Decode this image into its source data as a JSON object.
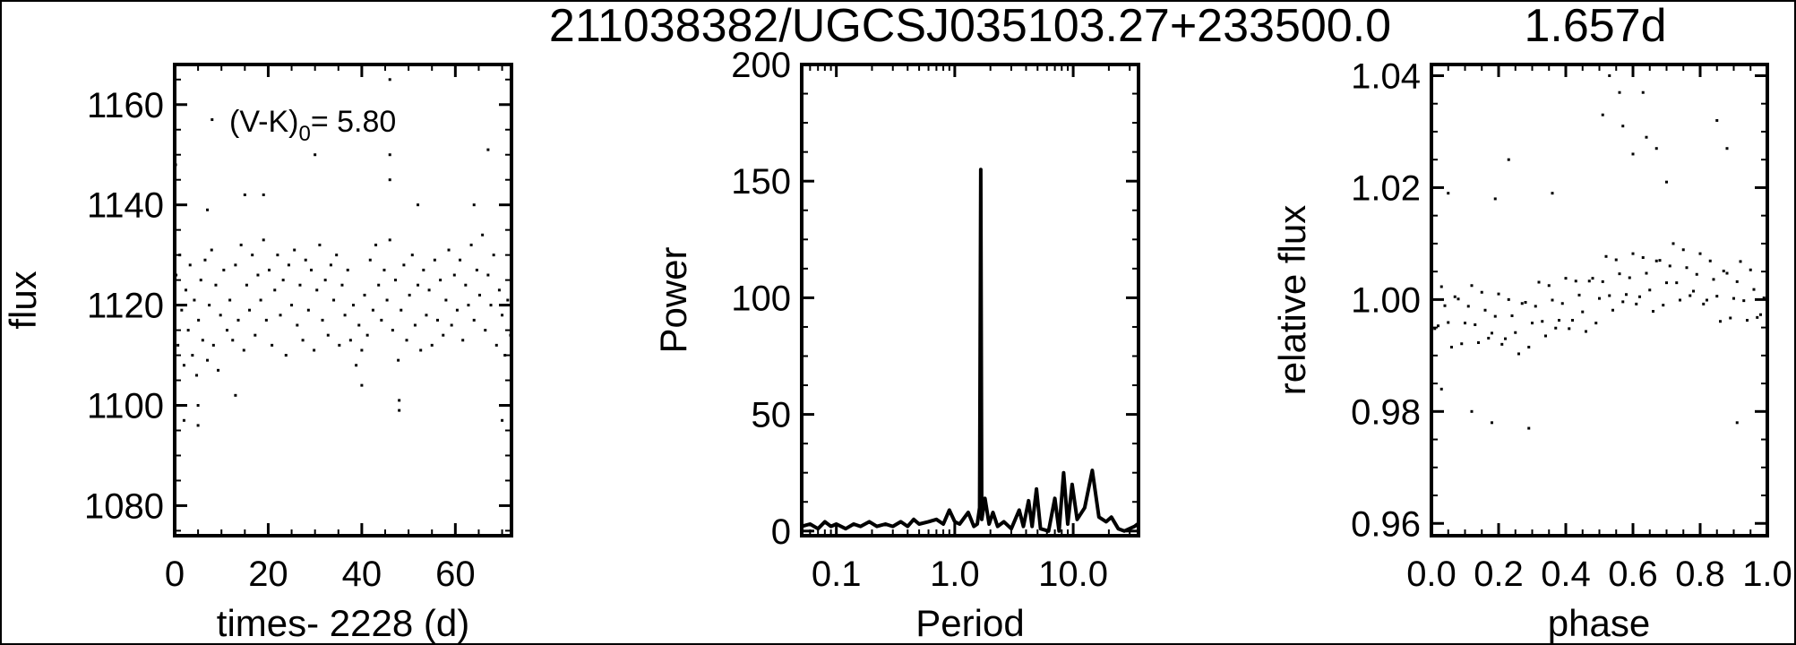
{
  "title": {
    "object": "211038382/UGCSJ035103.27+233500.0",
    "period": "1.657d"
  },
  "colors": {
    "ink": "#000000",
    "background": "#ffffff"
  },
  "chart_data": [
    {
      "type": "scatter",
      "xlabel": "times- 2228 (d)",
      "ylabel": "flux",
      "annotation": {
        "text": "(V-K)",
        "sub": "0",
        "value": "= 5.80"
      },
      "xlim": [
        0,
        72
      ],
      "ylim": [
        1074,
        1168
      ],
      "xticks": [
        0,
        20,
        40,
        60
      ],
      "xtick_labels": [
        "0",
        "20",
        "40",
        "60"
      ],
      "yticks": [
        1080,
        1100,
        1120,
        1140,
        1160
      ],
      "ytick_labels": [
        "1080",
        "1100",
        "1120",
        "1140",
        "1160"
      ],
      "grid": false,
      "points": [
        [
          0.3,
          1126
        ],
        [
          0.7,
          1112
        ],
        [
          1.1,
          1130
        ],
        [
          1.5,
          1119
        ],
        [
          2.0,
          1108
        ],
        [
          2.4,
          1123
        ],
        [
          2.9,
          1115
        ],
        [
          3.3,
          1128
        ],
        [
          3.8,
          1110
        ],
        [
          4.2,
          1121
        ],
        [
          4.7,
          1106
        ],
        [
          5.1,
          1117
        ],
        [
          5.6,
          1125
        ],
        [
          6.0,
          1113
        ],
        [
          6.5,
          1129
        ],
        [
          7.0,
          1109
        ],
        [
          7.4,
          1120
        ],
        [
          7.9,
          1131
        ],
        [
          8.3,
          1112
        ],
        [
          8.8,
          1124
        ],
        [
          9.3,
          1107
        ],
        [
          9.8,
          1118
        ],
        [
          10.5,
          1127
        ],
        [
          11.2,
          1115
        ],
        [
          11.8,
          1121
        ],
        [
          12.4,
          1113
        ],
        [
          13.0,
          1128
        ],
        [
          13.6,
          1117
        ],
        [
          14.2,
          1132
        ],
        [
          14.8,
          1111
        ],
        [
          15.4,
          1124
        ],
        [
          16.0,
          1119
        ],
        [
          16.6,
          1130
        ],
        [
          17.2,
          1114
        ],
        [
          17.8,
          1126
        ],
        [
          18.4,
          1121
        ],
        [
          19.0,
          1133
        ],
        [
          19.6,
          1117
        ],
        [
          20.2,
          1127
        ],
        [
          20.8,
          1112
        ],
        [
          21.4,
          1123
        ],
        [
          22.0,
          1130
        ],
        [
          22.6,
          1118
        ],
        [
          23.2,
          1125
        ],
        [
          23.8,
          1110
        ],
        [
          24.4,
          1128
        ],
        [
          25.0,
          1120
        ],
        [
          25.6,
          1131
        ],
        [
          26.2,
          1116
        ],
        [
          26.8,
          1124
        ],
        [
          27.4,
          1113
        ],
        [
          28.0,
          1129
        ],
        [
          28.6,
          1119
        ],
        [
          29.2,
          1127
        ],
        [
          29.8,
          1111
        ],
        [
          30.4,
          1123
        ],
        [
          31.0,
          1132
        ],
        [
          31.6,
          1117
        ],
        [
          32.2,
          1125
        ],
        [
          32.8,
          1114
        ],
        [
          33.4,
          1128
        ],
        [
          34.0,
          1121
        ],
        [
          34.6,
          1130
        ],
        [
          35.2,
          1112
        ],
        [
          35.8,
          1124
        ],
        [
          36.4,
          1118
        ],
        [
          37.0,
          1127
        ],
        [
          37.6,
          1113
        ],
        [
          38.2,
          1120
        ],
        [
          38.8,
          1108
        ],
        [
          39.4,
          1116
        ],
        [
          40.0,
          1111
        ],
        [
          40.6,
          1122
        ],
        [
          41.2,
          1114
        ],
        [
          41.8,
          1129
        ],
        [
          42.4,
          1119
        ],
        [
          43.0,
          1132
        ],
        [
          43.6,
          1124
        ],
        [
          44.2,
          1117
        ],
        [
          44.8,
          1127
        ],
        [
          45.4,
          1121
        ],
        [
          46.0,
          1133
        ],
        [
          46.6,
          1115
        ],
        [
          47.2,
          1125
        ],
        [
          47.8,
          1109
        ],
        [
          48.4,
          1119
        ],
        [
          49.0,
          1128
        ],
        [
          49.6,
          1113
        ],
        [
          50.2,
          1122
        ],
        [
          50.8,
          1130
        ],
        [
          51.4,
          1116
        ],
        [
          52.0,
          1124
        ],
        [
          52.6,
          1111
        ],
        [
          53.2,
          1127
        ],
        [
          53.8,
          1118
        ],
        [
          54.4,
          1123
        ],
        [
          55.0,
          1112
        ],
        [
          55.6,
          1129
        ],
        [
          56.2,
          1117
        ],
        [
          56.8,
          1125
        ],
        [
          57.4,
          1114
        ],
        [
          58.0,
          1121
        ],
        [
          58.6,
          1131
        ],
        [
          59.2,
          1116
        ],
        [
          59.8,
          1126
        ],
        [
          60.4,
          1119
        ],
        [
          61.0,
          1129
        ],
        [
          61.6,
          1113
        ],
        [
          62.2,
          1124
        ],
        [
          62.8,
          1120
        ],
        [
          63.4,
          1132
        ],
        [
          64.0,
          1117
        ],
        [
          64.6,
          1127
        ],
        [
          65.2,
          1122
        ],
        [
          65.8,
          1134
        ],
        [
          66.4,
          1115
        ],
        [
          67.0,
          1126
        ],
        [
          67.6,
          1120
        ],
        [
          68.2,
          1130
        ],
        [
          68.8,
          1112
        ],
        [
          69.4,
          1123
        ],
        [
          70.0,
          1118
        ],
        [
          70.6,
          1110
        ],
        [
          71.2,
          1121
        ],
        [
          71.8,
          1114
        ],
        [
          8,
          1157
        ],
        [
          30,
          1150
        ],
        [
          46,
          1165
        ],
        [
          46,
          1150
        ],
        [
          46,
          1145
        ],
        [
          67,
          1151
        ],
        [
          5,
          1100
        ],
        [
          5,
          1096
        ],
        [
          2,
          1097
        ],
        [
          48,
          1101
        ],
        [
          48,
          1099
        ],
        [
          70,
          1097
        ],
        [
          72,
          1096
        ],
        [
          0.2,
          1148
        ],
        [
          13,
          1102
        ],
        [
          40,
          1104
        ],
        [
          15,
          1142
        ],
        [
          19,
          1142
        ],
        [
          52,
          1140
        ],
        [
          64,
          1140
        ],
        [
          7,
          1139
        ]
      ]
    },
    {
      "type": "line",
      "xlabel": "Period",
      "ylabel": "Power",
      "xscale": "log",
      "xlim": [
        0.051,
        35.6
      ],
      "ylim": [
        -2,
        200
      ],
      "xticks": [
        0.1,
        1.0,
        10.0
      ],
      "xtick_labels": [
        "0.1",
        "1.0",
        "10.0"
      ],
      "yticks": [
        0,
        50,
        100,
        150,
        200
      ],
      "ytick_labels": [
        "0",
        "50",
        "100",
        "150",
        "200"
      ],
      "grid": false,
      "x": [
        0.051,
        0.06,
        0.07,
        0.08,
        0.09,
        0.1,
        0.12,
        0.14,
        0.16,
        0.19,
        0.22,
        0.26,
        0.3,
        0.35,
        0.4,
        0.45,
        0.5,
        0.6,
        0.7,
        0.8,
        0.9,
        1.0,
        1.1,
        1.3,
        1.45,
        1.55,
        1.62,
        1.657,
        1.69,
        1.8,
        1.95,
        2.1,
        2.3,
        2.6,
        3.0,
        3.5,
        3.8,
        4.2,
        4.5,
        4.9,
        5.3,
        6.2,
        7.0,
        7.6,
        8.3,
        9.0,
        9.8,
        10.8,
        12.5,
        14.5,
        16.5,
        19,
        21,
        24,
        27,
        33,
        35
      ],
      "y": [
        2,
        3,
        1,
        4,
        2,
        3,
        1,
        3,
        2,
        4,
        2,
        3,
        2,
        4,
        2,
        5,
        3,
        4,
        5,
        3,
        9,
        4,
        3,
        8,
        2,
        3,
        10,
        155,
        5,
        14,
        3,
        8,
        2,
        4,
        1,
        9,
        2,
        13,
        2,
        18,
        1,
        0,
        14,
        0,
        25,
        3,
        20,
        5,
        10,
        26,
        6,
        4,
        6,
        1,
        0,
        2,
        3
      ]
    },
    {
      "type": "scatter",
      "xlabel": "phase",
      "ylabel": "relative flux",
      "xlim": [
        0,
        1
      ],
      "ylim": [
        0.9578,
        1.042
      ],
      "xticks": [
        0,
        0.2,
        0.4,
        0.6,
        0.8,
        1.0
      ],
      "xtick_labels": [
        "0.0",
        "0.2",
        "0.4",
        "0.6",
        "0.8",
        "1.0"
      ],
      "yticks": [
        0.96,
        0.98,
        1.0,
        1.02,
        1.04
      ],
      "ytick_labels": [
        "0.96",
        "0.98",
        "1.00",
        "1.02",
        "1.04"
      ],
      "grid": false,
      "points": [
        [
          0.0,
          1.0038
        ],
        [
          0.02,
          0.9953
        ],
        [
          0.04,
          0.9989
        ],
        [
          0.06,
          0.9915
        ],
        [
          0.08,
          1.0001
        ],
        [
          0.1,
          0.9958
        ],
        [
          0.12,
          1.0025
        ],
        [
          0.14,
          0.9923
        ],
        [
          0.16,
          0.9981
        ],
        [
          0.18,
          0.994
        ],
        [
          0.2,
          1.001
        ],
        [
          0.22,
          0.993
        ],
        [
          0.24,
          0.9971
        ],
        [
          0.26,
          0.9903
        ],
        [
          0.28,
          0.9995
        ],
        [
          0.3,
          0.9958
        ],
        [
          0.32,
          1.0031
        ],
        [
          0.34,
          0.9935
        ],
        [
          0.36,
          0.9999
        ],
        [
          0.38,
          0.9963
        ],
        [
          0.4,
          1.0038
        ],
        [
          0.42,
          0.9963
        ],
        [
          0.44,
          1.0008
        ],
        [
          0.46,
          0.9943
        ],
        [
          0.48,
          1.0038
        ],
        [
          0.5,
          1.0002
        ],
        [
          0.52,
          1.0077
        ],
        [
          0.54,
          0.9981
        ],
        [
          0.56,
          1.0046
        ],
        [
          0.58,
          1.0009
        ],
        [
          0.6,
          1.0082
        ],
        [
          0.62,
          1.0005
        ],
        [
          0.64,
          1.0047
        ],
        [
          0.66,
          0.9979
        ],
        [
          0.68,
          1.007
        ],
        [
          0.7,
          1.003
        ],
        [
          0.72,
          1.01
        ],
        [
          0.74,
          0.9999
        ],
        [
          0.76,
          1.0057
        ],
        [
          0.78,
          1.0015
        ],
        [
          0.8,
          1.0082
        ],
        [
          0.82,
          0.9999
        ],
        [
          0.84,
          1.0036
        ],
        [
          0.86,
          0.9961
        ],
        [
          0.88,
          1.0047
        ],
        [
          0.9,
          1.0002
        ],
        [
          0.92,
          1.0068
        ],
        [
          0.94,
          0.9963
        ],
        [
          0.96,
          1.0018
        ],
        [
          0.98,
          0.9973
        ],
        [
          0.01,
          0.9948
        ],
        [
          0.03,
          1.0023
        ],
        [
          0.05,
          0.9959
        ],
        [
          0.07,
          1.0005
        ],
        [
          0.09,
          0.9921
        ],
        [
          0.11,
          0.9988
        ],
        [
          0.13,
          0.9955
        ],
        [
          0.15,
          1.0013
        ],
        [
          0.17,
          0.9931
        ],
        [
          0.19,
          0.997
        ],
        [
          0.21,
          0.992
        ],
        [
          0.23,
          1.0
        ],
        [
          0.25,
          0.9941
        ],
        [
          0.27,
          0.9993
        ],
        [
          0.29,
          0.9915
        ],
        [
          0.31,
          0.9988
        ],
        [
          0.33,
          0.9961
        ],
        [
          0.35,
          1.0025
        ],
        [
          0.37,
          0.9949
        ],
        [
          0.39,
          0.9993
        ],
        [
          0.41,
          0.9948
        ],
        [
          0.43,
          1.0033
        ],
        [
          0.45,
          0.9978
        ],
        [
          0.47,
          1.0033
        ],
        [
          0.49,
          0.9958
        ],
        [
          0.51,
          1.0032
        ],
        [
          0.53,
          1.0007
        ],
        [
          0.55,
          1.0071
        ],
        [
          0.57,
          0.9996
        ],
        [
          0.59,
          1.0039
        ],
        [
          0.61,
          0.9992
        ],
        [
          0.63,
          1.0075
        ],
        [
          0.65,
          1.0017
        ],
        [
          0.67,
          1.0069
        ],
        [
          0.69,
          0.999
        ],
        [
          0.71,
          1.006
        ],
        [
          0.73,
          1.003
        ],
        [
          0.75,
          1.0089
        ],
        [
          0.77,
          1.0007
        ],
        [
          0.79,
          1.0045
        ],
        [
          0.81,
          0.9992
        ],
        [
          0.83,
          1.0069
        ],
        [
          0.85,
          1.0006
        ],
        [
          0.87,
          1.0051
        ],
        [
          0.89,
          0.9967
        ],
        [
          0.91,
          1.0032
        ],
        [
          0.93,
          0.9998
        ],
        [
          0.95,
          1.0053
        ],
        [
          0.97,
          0.9968
        ],
        [
          0.99,
          1.0003
        ],
        [
          0.53,
          1.04
        ],
        [
          0.56,
          1.037
        ],
        [
          0.63,
          1.037
        ],
        [
          0.51,
          1.033
        ],
        [
          0.57,
          1.031
        ],
        [
          0.6,
          1.026
        ],
        [
          0.85,
          1.032
        ],
        [
          0.64,
          1.029
        ],
        [
          0.67,
          1.027
        ],
        [
          0.23,
          1.025
        ],
        [
          0.88,
          1.027
        ],
        [
          0.05,
          1.019
        ],
        [
          0.12,
          0.98
        ],
        [
          0.18,
          0.978
        ],
        [
          0.29,
          0.977
        ],
        [
          0.91,
          0.978
        ],
        [
          0.03,
          0.984
        ],
        [
          0.7,
          1.021
        ],
        [
          0.36,
          1.019
        ],
        [
          0.19,
          1.018
        ]
      ]
    }
  ]
}
